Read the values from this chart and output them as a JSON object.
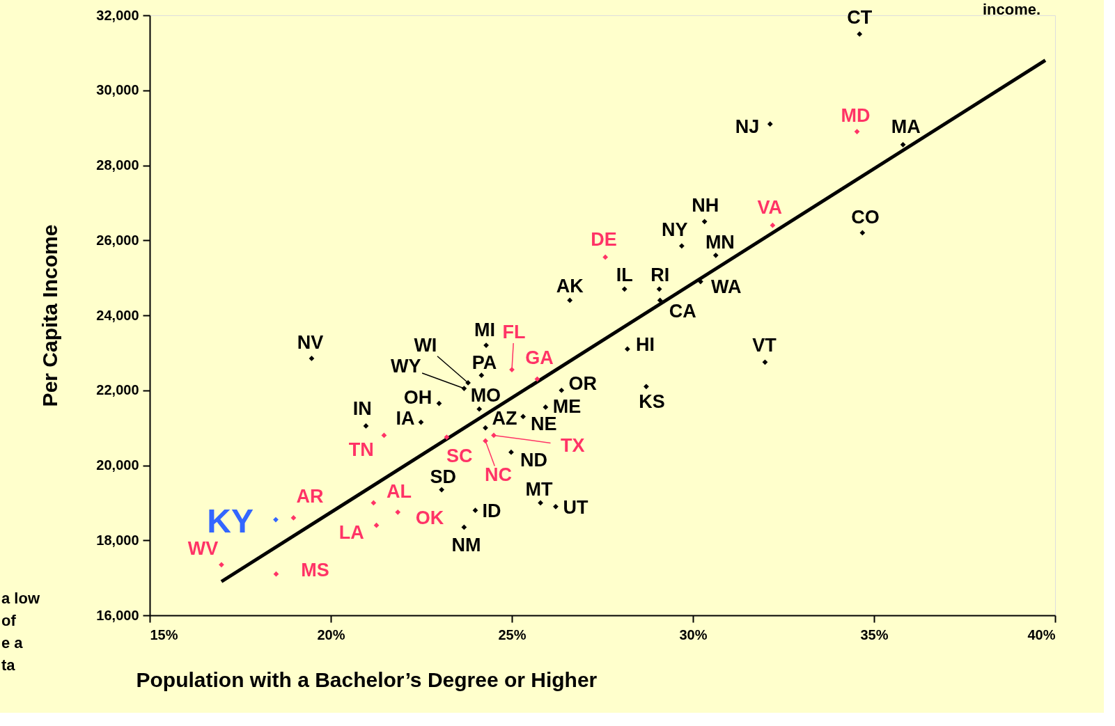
{
  "chart_data": {
    "type": "scatter",
    "xlabel": "Population with a Bachelor’s Degree or Higher",
    "ylabel": "Per  Capita  Income",
    "xlim": [
      15,
      40
    ],
    "ylim": [
      16000,
      32000
    ],
    "xticks": [
      {
        "value": 15,
        "label": "15%"
      },
      {
        "value": 20,
        "label": "20%"
      },
      {
        "value": 25,
        "label": "25%"
      },
      {
        "value": 30,
        "label": "30%"
      },
      {
        "value": 35,
        "label": "35%"
      },
      {
        "value": 40,
        "label": "40%"
      }
    ],
    "yticks": [
      {
        "value": 16000,
        "label": "16,000"
      },
      {
        "value": 18000,
        "label": "18,000"
      },
      {
        "value": 20000,
        "label": "20,000"
      },
      {
        "value": 22000,
        "label": "22,000"
      },
      {
        "value": 24000,
        "label": "24,000"
      },
      {
        "value": 26000,
        "label": "26,000"
      },
      {
        "value": 28000,
        "label": "28,000"
      },
      {
        "value": 30000,
        "label": "30,000"
      },
      {
        "value": 32000,
        "label": "32,000"
      }
    ],
    "grid": false,
    "marker": "diamond",
    "series": [
      {
        "color": "#000000",
        "x": [
          34.6,
          32.13,
          35.8,
          30.32,
          34.68,
          29.69,
          30.63,
          30.21,
          28.11,
          29.07,
          29.09,
          26.6,
          28.19,
          31.99,
          19.47,
          24.29,
          23.79,
          23.68,
          24.16,
          28.71,
          26.37,
          22.99,
          24.1,
          25.93,
          22.49,
          25.31,
          24.27,
          20.97,
          24.98,
          23.06,
          25.79,
          26.21,
          23.99,
          23.68
        ],
        "values": [
          31500,
          29100,
          28550,
          26500,
          26200,
          25850,
          25600,
          24900,
          24700,
          24700,
          24400,
          24400,
          23100,
          22750,
          22850,
          23200,
          22200,
          22050,
          22400,
          22100,
          22000,
          21650,
          21500,
          21550,
          21150,
          21300,
          21000,
          21050,
          20350,
          19350,
          19000,
          18900,
          18800,
          18350
        ]
      },
      {
        "color": "#ff3366",
        "x": [
          34.53,
          32.2,
          27.58,
          25.0,
          25.7,
          21.47,
          24.5,
          23.2,
          24.27,
          21.18,
          18.97,
          21.85,
          21.26,
          16.98,
          18.49
        ],
        "values": [
          28900,
          26400,
          25550,
          22550,
          22300,
          20800,
          20800,
          20750,
          20650,
          19000,
          18600,
          18750,
          18400,
          17350,
          17100
        ]
      },
      {
        "color": "#3366ff",
        "x": [
          18.48
        ],
        "values": [
          18550
        ]
      },
      {
        "type": "line",
        "color": "#000000",
        "marker": "none",
        "x": [
          16.98,
          39.73
        ],
        "values": [
          16900,
          30800
        ]
      }
    ],
    "annotations": [
      {
        "text": "CT",
        "x": 34.6,
        "y": 31500
      },
      {
        "text": "NJ",
        "x": 32.13,
        "y": 29100
      },
      {
        "text": "MA",
        "x": 35.8,
        "y": 28550
      },
      {
        "text": "NH",
        "x": 30.32,
        "y": 26500
      },
      {
        "text": "CO",
        "x": 34.68,
        "y": 26200
      },
      {
        "text": "NY",
        "x": 29.69,
        "y": 25850
      },
      {
        "text": "MN",
        "x": 30.63,
        "y": 25600
      },
      {
        "text": "WA",
        "x": 30.21,
        "y": 24900
      },
      {
        "text": "IL",
        "x": 28.11,
        "y": 24700
      },
      {
        "text": "RI",
        "x": 29.07,
        "y": 24700
      },
      {
        "text": "CA",
        "x": 29.09,
        "y": 24400
      },
      {
        "text": "AK",
        "x": 26.6,
        "y": 24400
      },
      {
        "text": "HI",
        "x": 28.19,
        "y": 23100
      },
      {
        "text": "VT",
        "x": 31.99,
        "y": 22750
      },
      {
        "text": "NV",
        "x": 19.47,
        "y": 22850
      },
      {
        "text": "MI",
        "x": 24.29,
        "y": 23200
      },
      {
        "text": "WI",
        "x": 23.79,
        "y": 22200
      },
      {
        "text": "WY",
        "x": 23.68,
        "y": 22050
      },
      {
        "text": "PA",
        "x": 24.16,
        "y": 22400
      },
      {
        "text": "KS",
        "x": 28.71,
        "y": 22100
      },
      {
        "text": "OR",
        "x": 26.37,
        "y": 22000
      },
      {
        "text": "OH",
        "x": 22.99,
        "y": 21650
      },
      {
        "text": "MO",
        "x": 24.1,
        "y": 21500
      },
      {
        "text": "ME",
        "x": 25.93,
        "y": 21550
      },
      {
        "text": "IA",
        "x": 22.49,
        "y": 21150
      },
      {
        "text": "NE",
        "x": 25.31,
        "y": 21300
      },
      {
        "text": "AZ",
        "x": 24.27,
        "y": 21000
      },
      {
        "text": "IN",
        "x": 20.97,
        "y": 21050
      },
      {
        "text": "ND",
        "x": 24.98,
        "y": 20350
      },
      {
        "text": "SD",
        "x": 23.06,
        "y": 19350
      },
      {
        "text": "MT",
        "x": 25.79,
        "y": 19000
      },
      {
        "text": "UT",
        "x": 26.21,
        "y": 18900
      },
      {
        "text": "ID",
        "x": 23.99,
        "y": 18800
      },
      {
        "text": "NM",
        "x": 23.68,
        "y": 18350
      },
      {
        "text": "MD",
        "x": 34.53,
        "y": 28900
      },
      {
        "text": "VA",
        "x": 32.2,
        "y": 26400
      },
      {
        "text": "DE",
        "x": 27.58,
        "y": 25550
      },
      {
        "text": "FL",
        "x": 25.0,
        "y": 22550
      },
      {
        "text": "GA",
        "x": 25.7,
        "y": 22300
      },
      {
        "text": "TN",
        "x": 21.47,
        "y": 20800
      },
      {
        "text": "TX",
        "x": 24.5,
        "y": 20800
      },
      {
        "text": "SC",
        "x": 23.2,
        "y": 20750
      },
      {
        "text": "NC",
        "x": 24.27,
        "y": 20650
      },
      {
        "text": "AL",
        "x": 21.18,
        "y": 19000
      },
      {
        "text": "AR",
        "x": 18.97,
        "y": 18600
      },
      {
        "text": "OK",
        "x": 21.85,
        "y": 18750
      },
      {
        "text": "LA",
        "x": 21.26,
        "y": 18400
      },
      {
        "text": "WV",
        "x": 16.98,
        "y": 17350
      },
      {
        "text": "MS",
        "x": 18.49,
        "y": 17100
      },
      {
        "text": "KY",
        "x": 18.48,
        "y": 18550
      },
      "income.",
      "a low\nof\n\ne a\nta"
    ]
  }
}
